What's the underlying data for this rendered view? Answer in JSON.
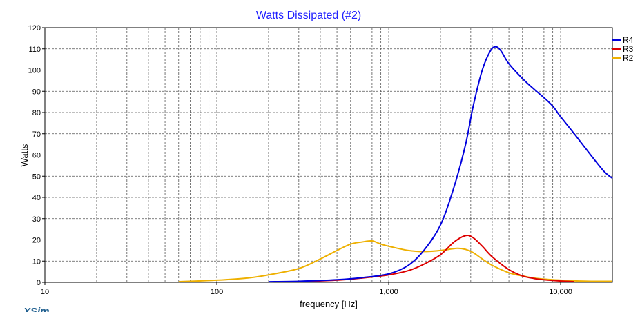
{
  "chart_data": {
    "type": "line",
    "title": "Watts Dissipated (#2)",
    "xlabel": "frequency [Hz]",
    "ylabel": "Watts",
    "xscale": "log",
    "xlim": [
      10,
      20000
    ],
    "ylim": [
      0,
      120
    ],
    "x_ticks": [
      {
        "value": 10,
        "label": "10"
      },
      {
        "value": 100,
        "label": "100"
      },
      {
        "value": 1000,
        "label": "1,000"
      },
      {
        "value": 10000,
        "label": "10,000"
      }
    ],
    "y_ticks": [
      0,
      10,
      20,
      30,
      40,
      50,
      60,
      70,
      80,
      90,
      100,
      110,
      120
    ],
    "grid": true,
    "legend": "right",
    "series": [
      {
        "name": "R4",
        "color": "#0000dd",
        "x": [
          200,
          300,
          500,
          700,
          1000,
          1300,
          1600,
          2000,
          2400,
          2800,
          3100,
          3500,
          3900,
          4200,
          4500,
          5000,
          6000,
          7000,
          8000,
          9000,
          10000,
          12000,
          14000,
          16000,
          18000,
          20000
        ],
        "y": [
          0.3,
          0.5,
          1.2,
          2.2,
          4,
          8,
          15,
          27,
          45,
          65,
          83,
          100,
          109,
          111,
          109,
          103,
          96,
          91,
          87,
          83,
          78,
          70,
          63,
          57,
          52,
          49
        ]
      },
      {
        "name": "R3",
        "color": "#dd0000",
        "x": [
          300,
          500,
          700,
          1000,
          1300,
          1600,
          2000,
          2400,
          2800,
          3100,
          3500,
          4000,
          5000,
          6000,
          7000,
          8000,
          10000,
          12000
        ],
        "y": [
          0.3,
          1,
          2,
          3.5,
          5.5,
          8.5,
          13,
          19,
          22,
          21,
          17,
          12,
          6,
          3,
          1.8,
          1.2,
          0.6,
          0.3
        ]
      },
      {
        "name": "R2",
        "color": "#eeb000",
        "x": [
          60,
          100,
          150,
          200,
          300,
          400,
          500,
          600,
          700,
          800,
          900,
          1000,
          1300,
          1600,
          2000,
          2500,
          2800,
          3100,
          3500,
          4000,
          5000,
          6000,
          7000,
          8000,
          10000,
          12000,
          15000,
          20000
        ],
        "y": [
          0.3,
          1,
          2,
          3.5,
          6.5,
          11,
          15,
          18,
          19,
          19.5,
          18,
          17,
          15,
          14.5,
          15,
          16,
          15.5,
          14,
          11,
          8,
          4.5,
          3,
          2,
          1.5,
          1,
          0.7,
          0.5,
          0.5
        ]
      }
    ]
  },
  "brand": "XSim"
}
